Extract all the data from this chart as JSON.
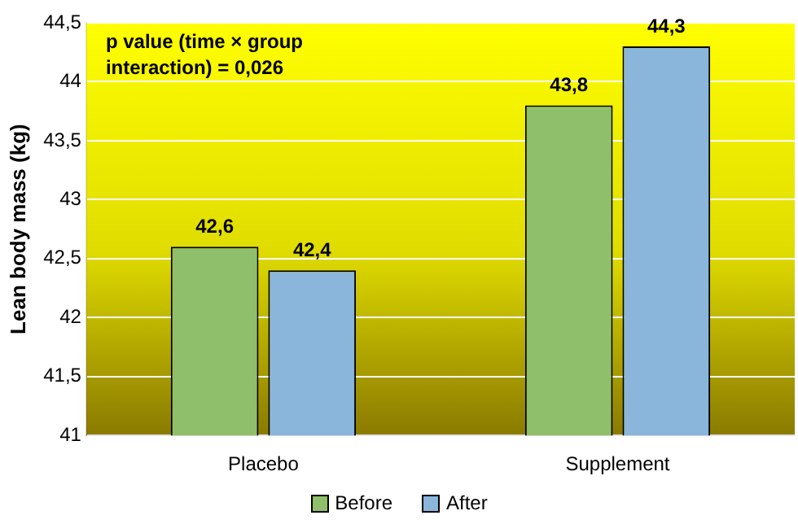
{
  "chart_data": {
    "type": "bar",
    "ylabel": "Lean body mass (kg)",
    "categories": [
      "Placebo",
      "Supplement"
    ],
    "series": [
      {
        "name": "Before",
        "color": "#8fbf6a",
        "values": [
          42.6,
          43.8
        ],
        "value_labels": [
          "42,6",
          "43,8"
        ]
      },
      {
        "name": "After",
        "color": "#8ab6dc",
        "values": [
          42.4,
          44.3
        ],
        "value_labels": [
          "42,4",
          "44,3"
        ]
      }
    ],
    "ylim": [
      41,
      44.5
    ],
    "yticks": [
      41,
      {
        "value": 41.5,
        "label": "41,5"
      },
      42,
      {
        "value": 42.5,
        "label": "42,5"
      },
      43,
      {
        "value": 43.5,
        "label": "43,5"
      },
      44,
      {
        "value": 44.5,
        "label": "44,5"
      }
    ],
    "grid": "y",
    "legend": "bottom",
    "annotations": [
      "p value (time × group interaction) = 0,026"
    ]
  }
}
